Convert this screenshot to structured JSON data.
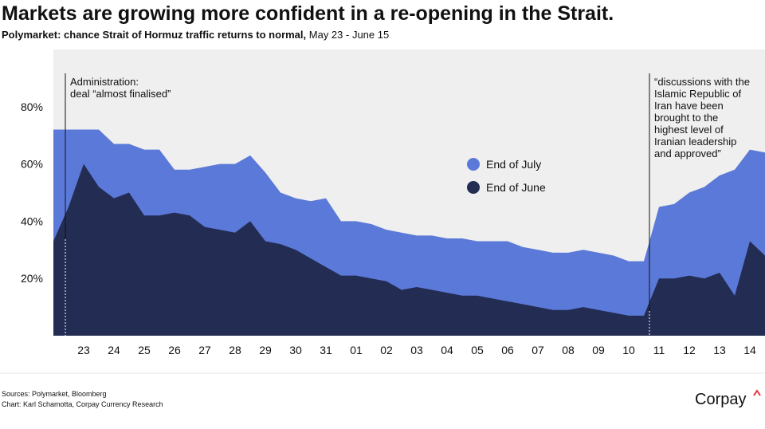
{
  "chart_data": {
    "type": "area",
    "title": "Markets are growing more confident in a re-opening in the Strait.",
    "subtitle": [
      "Polymarket: chance Strait of Hormuz traffic returns to normal,",
      "May 23 -  June 15"
    ],
    "categories": [
      null,
      null,
      "23",
      null,
      "24",
      null,
      "25",
      null,
      "26",
      null,
      "27",
      null,
      "28",
      null,
      "29",
      null,
      "30",
      null,
      "31",
      null,
      "01",
      null,
      "02",
      null,
      "03",
      null,
      "04",
      null,
      "05",
      null,
      "06",
      null,
      "07",
      null,
      "08",
      null,
      "09",
      null,
      "10",
      null,
      "11",
      null,
      "12",
      null,
      "13",
      null,
      "14",
      null
    ],
    "series": [
      {
        "name": "End of July",
        "color": "#5b79d8",
        "values": [
          72,
          72,
          72,
          72,
          67,
          67,
          65,
          65,
          58,
          58,
          59,
          60,
          60,
          63,
          57,
          50,
          48,
          47,
          48,
          40,
          40,
          39,
          37,
          36,
          35,
          35,
          34,
          34,
          33,
          33,
          33,
          31,
          30,
          29,
          29,
          30,
          29,
          28,
          26,
          26,
          45,
          46,
          50,
          52,
          56,
          58,
          65,
          64
        ]
      },
      {
        "name": "End of June",
        "color": "#232c52",
        "values": [
          33,
          45,
          60,
          52,
          48,
          50,
          42,
          42,
          43,
          42,
          38,
          37,
          36,
          40,
          33,
          32,
          30,
          27,
          24,
          21,
          21,
          20,
          19,
          16,
          17,
          16,
          15,
          14,
          14,
          13,
          12,
          11,
          10,
          9,
          9,
          10,
          9,
          8,
          7,
          7,
          20,
          20,
          21,
          20,
          22,
          14,
          33,
          28
        ]
      }
    ],
    "ylim": [
      0,
      100
    ],
    "yticks": [
      {
        "value": 20,
        "label": "20%"
      },
      {
        "value": 40,
        "label": "40%"
      },
      {
        "value": 60,
        "label": "60%"
      },
      {
        "value": 80,
        "label": "80%"
      }
    ],
    "annotations": [
      [
        "Administration:",
        "deal “almost finalised”"
      ],
      [
        "“discussions with the",
        "Islamic Republic of",
        "Iran have been",
        "brought to the",
        "highest level of",
        "Iranian leadership",
        "and approved”"
      ]
    ],
    "sources": "Sources: Polymarket, Bloomberg",
    "credit": "Chart: Karl Schamotta, Corpay Currency Research",
    "brand": "Corpay"
  }
}
